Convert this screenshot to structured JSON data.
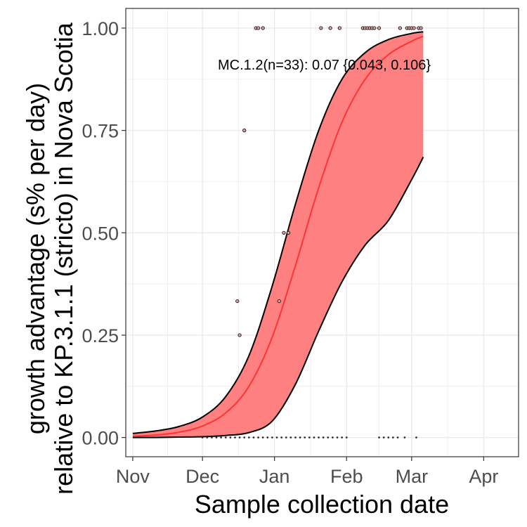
{
  "chart_data": {
    "type": "line",
    "title": "",
    "xlabel": "Sample collection date",
    "ylabel_lines": [
      "growth advantage (s% per day)",
      "relative to KP.3.1.1 (stricto) in Nova Scotia"
    ],
    "x_ticks": [
      {
        "date": "2024-11-01",
        "label": "Nov"
      },
      {
        "date": "2024-12-01",
        "label": "Dec"
      },
      {
        "date": "2025-01-01",
        "label": "Jan"
      },
      {
        "date": "2025-02-01",
        "label": "Feb"
      },
      {
        "date": "2025-03-01",
        "label": "Mar"
      },
      {
        "date": "2025-04-01",
        "label": "Apr"
      }
    ],
    "xlim": [
      "2024-10-29",
      "2025-04-16"
    ],
    "y_ticks": [
      {
        "value": 0,
        "label": "0.00"
      },
      {
        "value": 0.25,
        "label": "0.25"
      },
      {
        "value": 0.5,
        "label": "0.50"
      },
      {
        "value": 0.75,
        "label": "0.75"
      },
      {
        "value": 1.0,
        "label": "1.00"
      }
    ],
    "ylim": [
      -0.047,
      1.048
    ],
    "grid": true,
    "legend": "none",
    "colors": {
      "fit": "#ff3333",
      "ribbon": "#ff8080",
      "ribbon_edge": "#000000",
      "points": "#000000",
      "grid": "#ebebeb",
      "panel_border": "#333333"
    },
    "annotation": "MC.1.2(n=33): 0.07 {0.043, 0.106}",
    "series": [
      {
        "role": "fit",
        "points": [
          {
            "x": "2024-11-01",
            "y": 0.003
          },
          {
            "x": "2024-11-11",
            "y": 0.006
          },
          {
            "x": "2024-11-21",
            "y": 0.013
          },
          {
            "x": "2024-12-01",
            "y": 0.028
          },
          {
            "x": "2024-12-11",
            "y": 0.06
          },
          {
            "x": "2024-12-21",
            "y": 0.125
          },
          {
            "x": "2024-12-31",
            "y": 0.245
          },
          {
            "x": "2025-01-10",
            "y": 0.42
          },
          {
            "x": "2025-01-20",
            "y": 0.61
          },
          {
            "x": "2025-01-30",
            "y": 0.77
          },
          {
            "x": "2025-02-09",
            "y": 0.875
          },
          {
            "x": "2025-02-19",
            "y": 0.935
          },
          {
            "x": "2025-03-01",
            "y": 0.968
          },
          {
            "x": "2025-03-06",
            "y": 0.98
          }
        ]
      },
      {
        "role": "ribbon_upper",
        "points": [
          {
            "x": "2024-11-01",
            "y": 0.01
          },
          {
            "x": "2024-11-11",
            "y": 0.016
          },
          {
            "x": "2024-11-21",
            "y": 0.027
          },
          {
            "x": "2024-12-01",
            "y": 0.05
          },
          {
            "x": "2024-12-11",
            "y": 0.1
          },
          {
            "x": "2024-12-21",
            "y": 0.2
          },
          {
            "x": "2024-12-31",
            "y": 0.37
          },
          {
            "x": "2025-01-10",
            "y": 0.57
          },
          {
            "x": "2025-01-20",
            "y": 0.75
          },
          {
            "x": "2025-01-30",
            "y": 0.875
          },
          {
            "x": "2025-02-09",
            "y": 0.94
          },
          {
            "x": "2025-02-19",
            "y": 0.972
          },
          {
            "x": "2025-03-01",
            "y": 0.987
          },
          {
            "x": "2025-03-06",
            "y": 0.991
          }
        ]
      },
      {
        "role": "ribbon_lower",
        "points": [
          {
            "x": "2024-11-01",
            "y": 0.0
          },
          {
            "x": "2024-11-11",
            "y": 0.0
          },
          {
            "x": "2024-11-21",
            "y": 0.001
          },
          {
            "x": "2024-12-01",
            "y": 0.002
          },
          {
            "x": "2024-12-11",
            "y": 0.005
          },
          {
            "x": "2024-12-21",
            "y": 0.012
          },
          {
            "x": "2024-12-31",
            "y": 0.04
          },
          {
            "x": "2025-01-10",
            "y": 0.13
          },
          {
            "x": "2025-01-20",
            "y": 0.26
          },
          {
            "x": "2025-01-30",
            "y": 0.38
          },
          {
            "x": "2025-02-09",
            "y": 0.47
          },
          {
            "x": "2025-02-19",
            "y": 0.53
          },
          {
            "x": "2025-03-01",
            "y": 0.63
          },
          {
            "x": "2025-03-06",
            "y": 0.685
          }
        ]
      }
    ],
    "observations": [
      {
        "x": "2024-12-24",
        "y": 1.0
      },
      {
        "x": "2024-12-25",
        "y": 1.0
      },
      {
        "x": "2024-12-27",
        "y": 1.0
      },
      {
        "x": "2025-01-21",
        "y": 1.0
      },
      {
        "x": "2025-01-25",
        "y": 1.0
      },
      {
        "x": "2025-01-29",
        "y": 1.0
      },
      {
        "x": "2025-02-08",
        "y": 1.0
      },
      {
        "x": "2025-02-09",
        "y": 1.0
      },
      {
        "x": "2025-02-10",
        "y": 1.0
      },
      {
        "x": "2025-02-11",
        "y": 1.0
      },
      {
        "x": "2025-02-12",
        "y": 1.0
      },
      {
        "x": "2025-02-13",
        "y": 1.0
      },
      {
        "x": "2025-02-15",
        "y": 1.0
      },
      {
        "x": "2025-02-24",
        "y": 1.0
      },
      {
        "x": "2025-02-27",
        "y": 1.0
      },
      {
        "x": "2025-02-28",
        "y": 1.0
      },
      {
        "x": "2025-03-01",
        "y": 1.0
      },
      {
        "x": "2025-03-02",
        "y": 1.0
      },
      {
        "x": "2025-03-04",
        "y": 1.0
      },
      {
        "x": "2025-03-05",
        "y": 1.0
      },
      {
        "x": "2024-12-19",
        "y": 0.75
      },
      {
        "x": "2025-01-05",
        "y": 0.5
      },
      {
        "x": "2025-01-07",
        "y": 0.5
      },
      {
        "x": "2024-12-16",
        "y": 0.333
      },
      {
        "x": "2025-01-03",
        "y": 0.333
      },
      {
        "x": "2024-12-17",
        "y": 0.25
      },
      {
        "x": "2024-12-01",
        "y": 0.0
      },
      {
        "x": "2024-12-03",
        "y": 0.0
      },
      {
        "x": "2024-12-05",
        "y": 0.0
      },
      {
        "x": "2024-12-07",
        "y": 0.0
      },
      {
        "x": "2024-12-09",
        "y": 0.0
      },
      {
        "x": "2024-12-11",
        "y": 0.0
      },
      {
        "x": "2024-12-13",
        "y": 0.0
      },
      {
        "x": "2024-12-15",
        "y": 0.0
      },
      {
        "x": "2024-12-17",
        "y": 0.0
      },
      {
        "x": "2024-12-19",
        "y": 0.0
      },
      {
        "x": "2024-12-21",
        "y": 0.0
      },
      {
        "x": "2024-12-23",
        "y": 0.0
      },
      {
        "x": "2024-12-25",
        "y": 0.0
      },
      {
        "x": "2024-12-27",
        "y": 0.0
      },
      {
        "x": "2024-12-29",
        "y": 0.0
      },
      {
        "x": "2024-12-31",
        "y": 0.0
      },
      {
        "x": "2025-01-02",
        "y": 0.0
      },
      {
        "x": "2025-01-04",
        "y": 0.0
      },
      {
        "x": "2025-01-06",
        "y": 0.0
      },
      {
        "x": "2025-01-08",
        "y": 0.0
      },
      {
        "x": "2025-01-10",
        "y": 0.0
      },
      {
        "x": "2025-01-12",
        "y": 0.0
      },
      {
        "x": "2025-01-14",
        "y": 0.0
      },
      {
        "x": "2025-01-16",
        "y": 0.0
      },
      {
        "x": "2025-01-18",
        "y": 0.0
      },
      {
        "x": "2025-01-20",
        "y": 0.0
      },
      {
        "x": "2025-01-22",
        "y": 0.0
      },
      {
        "x": "2025-01-24",
        "y": 0.0
      },
      {
        "x": "2025-01-26",
        "y": 0.0
      },
      {
        "x": "2025-01-28",
        "y": 0.0
      },
      {
        "x": "2025-01-30",
        "y": 0.0
      },
      {
        "x": "2025-02-01",
        "y": 0.0
      },
      {
        "x": "2025-02-15",
        "y": 0.0
      },
      {
        "x": "2025-02-17",
        "y": 0.0
      },
      {
        "x": "2025-02-19",
        "y": 0.0
      },
      {
        "x": "2025-02-21",
        "y": 0.0
      },
      {
        "x": "2025-02-23",
        "y": 0.0
      },
      {
        "x": "2025-02-26",
        "y": 0.0
      },
      {
        "x": "2025-03-03",
        "y": 0.0
      }
    ]
  }
}
